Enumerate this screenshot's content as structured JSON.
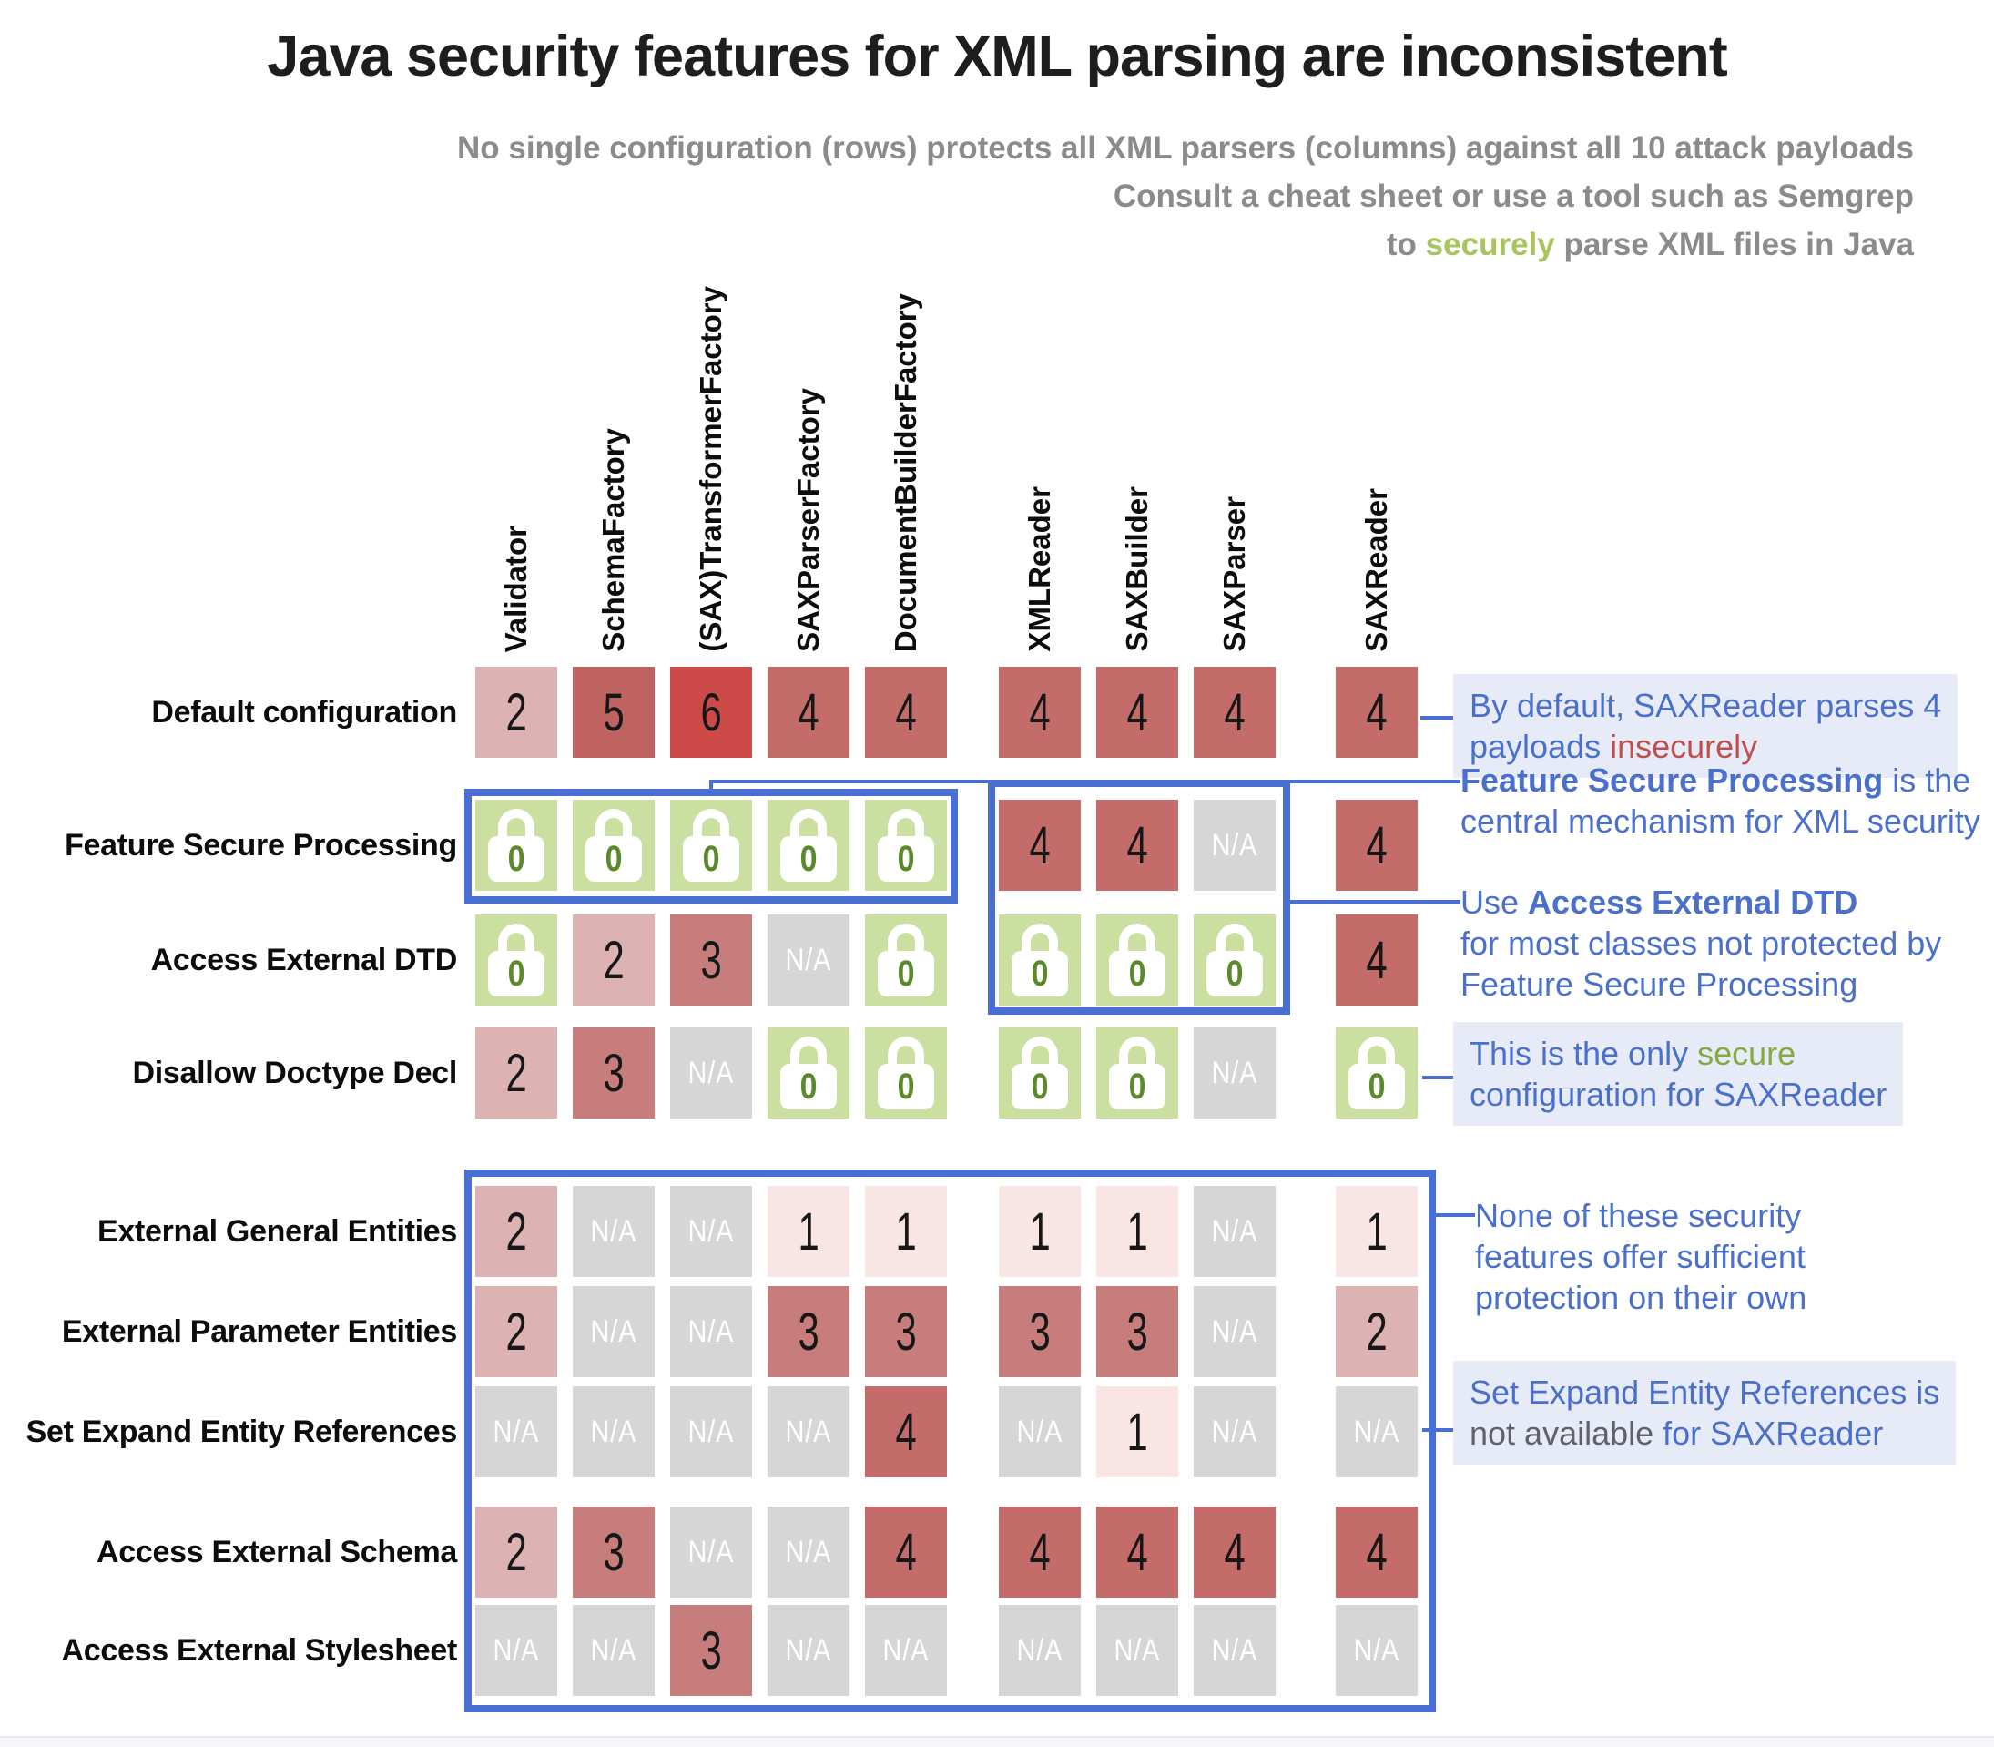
{
  "title": "Java security features for XML parsing are inconsistent",
  "subtitle": {
    "line1": "No single configuration (rows) protects all XML parsers (columns) against all 10 attack payloads",
    "line2": "Consult a cheat sheet or use a tool such as Semgrep",
    "line3_prefix": "to ",
    "line3_highlight": "securely",
    "line3_suffix": " parse XML files in Java"
  },
  "chart_data": {
    "type": "heatmap",
    "title": "Java security features for XML parsing are inconsistent",
    "columns": [
      "Validator",
      "SchemaFactory",
      "(SAX)TransformerFactory",
      "SAXParserFactory",
      "DocumentBuilderFactory",
      "XMLReader",
      "SAXBuilder",
      "SAXParser",
      "SAXReader"
    ],
    "column_group_breaks": [
      5,
      8
    ],
    "rows": [
      "Default configuration",
      "Feature Secure Processing",
      "Access External DTD",
      "Disallow Doctype Decl",
      "External General Entities",
      "External Parameter Entities",
      "Set Expand Entity References",
      "Access External Schema",
      "Access External Stylesheet"
    ],
    "values": [
      [
        "2",
        "5",
        "6",
        "4",
        "4",
        "4",
        "4",
        "4",
        "4"
      ],
      [
        "0",
        "0",
        "0",
        "0",
        "0",
        "4",
        "4",
        "N/A",
        "4"
      ],
      [
        "0",
        "2",
        "3",
        "N/A",
        "0",
        "0",
        "0",
        "0",
        "4"
      ],
      [
        "2",
        "3",
        "N/A",
        "0",
        "0",
        "0",
        "0",
        "N/A",
        "0"
      ],
      [
        "2",
        "N/A",
        "N/A",
        "1",
        "1",
        "1",
        "1",
        "N/A",
        "1"
      ],
      [
        "2",
        "N/A",
        "N/A",
        "3",
        "3",
        "3",
        "3",
        "N/A",
        "2"
      ],
      [
        "N/A",
        "N/A",
        "N/A",
        "N/A",
        "4",
        "N/A",
        "1",
        "N/A",
        "N/A"
      ],
      [
        "2",
        "3",
        "N/A",
        "N/A",
        "4",
        "4",
        "4",
        "4",
        "4"
      ],
      [
        "N/A",
        "N/A",
        "3",
        "N/A",
        "N/A",
        "N/A",
        "N/A",
        "N/A",
        "N/A"
      ]
    ],
    "secure_value": "0",
    "value_range": [
      0,
      6
    ]
  },
  "annotations": [
    {
      "name": "annotation-saxreader-default",
      "bg": true,
      "lines": [
        [
          {
            "text": "By default, SAXReader parses 4",
            "style": "blue"
          }
        ],
        [
          {
            "text": "payloads ",
            "style": "blue"
          },
          {
            "text": "insecurely",
            "style": "red"
          }
        ]
      ]
    },
    {
      "name": "annotation-fsp-central-mechanism",
      "bg": false,
      "lines": [
        [
          {
            "text": "Feature Secure Processing",
            "style": "blue-bold"
          },
          {
            "text": " is the",
            "style": "blue"
          }
        ],
        [
          {
            "text": "central mechanism for XML security",
            "style": "blue"
          }
        ]
      ]
    },
    {
      "name": "annotation-use-access-external-dtd",
      "bg": false,
      "lines": [
        [
          {
            "text": "Use ",
            "style": "blue"
          },
          {
            "text": "Access External DTD",
            "style": "blue-bold"
          }
        ],
        [
          {
            "text": "for most classes not protected by",
            "style": "blue"
          }
        ],
        [
          {
            "text": "Feature Secure Processing",
            "style": "blue"
          }
        ]
      ]
    },
    {
      "name": "annotation-only-secure-saxreader",
      "bg": true,
      "lines": [
        [
          {
            "text": "This is the only ",
            "style": "blue"
          },
          {
            "text": "secure",
            "style": "green"
          }
        ],
        [
          {
            "text": "configuration for SAXReader",
            "style": "blue"
          }
        ]
      ]
    },
    {
      "name": "annotation-insufficient-protection",
      "bg": false,
      "lines": [
        [
          {
            "text": "None of these security",
            "style": "blue"
          }
        ],
        [
          {
            "text": "features offer sufficient",
            "style": "blue"
          }
        ],
        [
          {
            "text": "protection on their own",
            "style": "blue"
          }
        ]
      ]
    },
    {
      "name": "annotation-seer-not-available",
      "bg": true,
      "lines": [
        [
          {
            "text": "Set Expand Entity References is",
            "style": "blue"
          }
        ],
        [
          {
            "text": "not available",
            "style": "grey"
          },
          {
            "text": " for SAXReader",
            "style": "blue"
          }
        ]
      ]
    }
  ],
  "colors": {
    "accent_blue": "#4a6fd4",
    "annotation_text_blue": "#4a70cc",
    "annotation_bg": "#e7ebf8",
    "red_text": "#c0504d",
    "green_text": "#86a93f",
    "subtitle_green": "#a9c45e",
    "subtitle_grey": "#8b8b8b",
    "lock_zero_green": "#5c8a2a",
    "na_text": "#ffffff",
    "value_colors": {
      "0": "#cbdfa0",
      "1": "#f8e5e4",
      "2": "#ddb2b2",
      "3": "#c87d7d",
      "4": "#c36c6a",
      "5": "#bf6361",
      "6": "#cc4a47",
      "N/A": "#d6d6d6"
    }
  }
}
